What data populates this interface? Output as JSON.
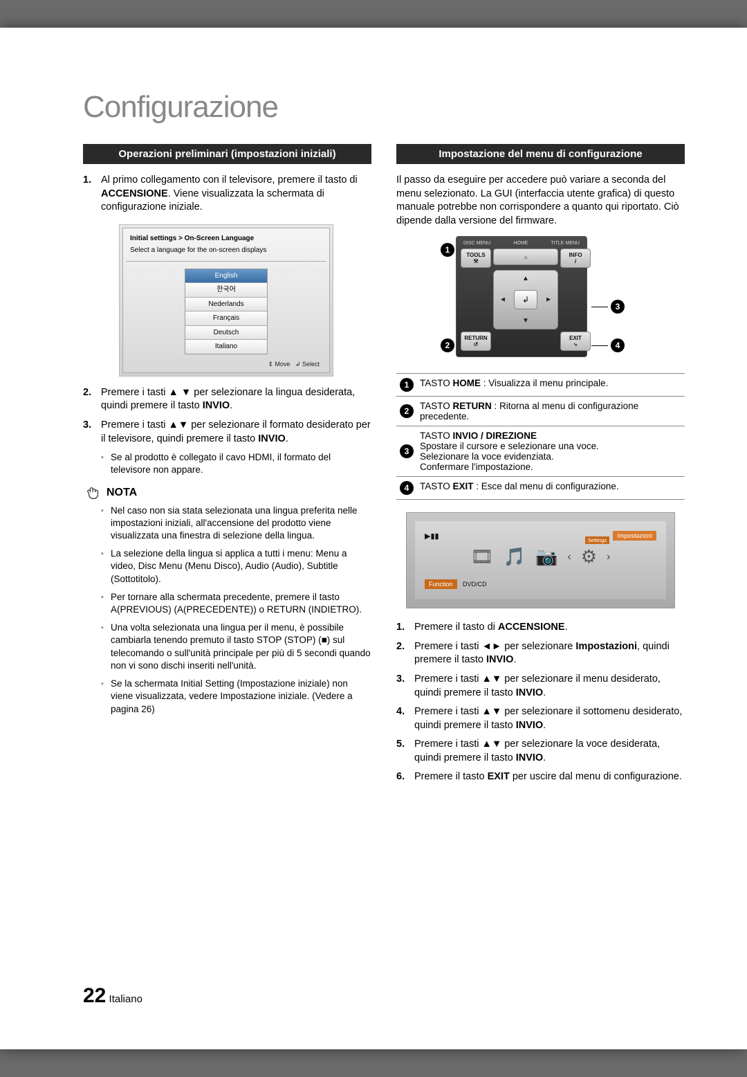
{
  "page_title": "Configurazione",
  "page_number": "22",
  "page_lang": "Italiano",
  "left": {
    "heading": "Operazioni preliminari (impostazioni iniziali)",
    "step1_a": "Al primo collegamento con il televisore, premere il tasto di ",
    "step1_b": "ACCENSIONE",
    "step1_c": ". Viene visualizzata la schermata di configurazione iniziale.",
    "langbox": {
      "breadcrumb": "Initial settings > On-Screen Language",
      "subtitle": "Select a language for the on-screen displays",
      "langs": [
        "English",
        "한국어",
        "Nederlands",
        "Français",
        "Deutsch",
        "Italiano"
      ],
      "foot_move": "Move",
      "foot_select": "Select"
    },
    "step2": "Premere i tasti ▲ ▼ per selezionare la lingua desiderata, quindi premere il tasto ",
    "step2_b": "INVIO",
    "step3": "Premere i tasti ▲▼ per selezionare il formato desiderato per il televisore, quindi premere il tasto ",
    "step3_b": "INVIO",
    "sub_hdmi": "Se al prodotto è collegato il cavo HDMI, il formato del televisore non appare.",
    "nota_label": "NOTA",
    "nota": [
      "Nel caso non sia stata selezionata una lingua preferita nelle impostazioni iniziali, all'accensione del prodotto viene visualizzata una finestra di selezione della lingua.",
      "La selezione della lingua si applica a tutti i menu: Menu a video, Disc Menu (Menu Disco), Audio (Audio), Subtitle (Sottotitolo).",
      "Per tornare alla schermata precedente, premere il tasto A(PREVIOUS) (A(PRECEDENTE)) o RETURN (INDIETRO).",
      "Una volta selezionata una lingua per il menu, è possibile cambiarla tenendo premuto il tasto STOP (STOP) (■) sul telecomando o sull'unità principale per più di 5 secondi quando non vi sono dischi inseriti nell'unità.",
      "Se la schermata Initial Setting (Impostazione iniziale) non viene visualizzata, vedere Impostazione iniziale. (Vedere a pagina 26)"
    ]
  },
  "right": {
    "heading": "Impostazione del menu di configurazione",
    "intro": "Il passo da eseguire per accedere può variare a seconda del menu selezionato. La GUI (interfaccia utente grafica) di questo manuale potrebbe non corrispondere a quanto qui riportato. Ciò dipende dalla versione del firmware.",
    "remote": {
      "top_labels": [
        "DISC MENU",
        "HOME",
        "TITLE MENU"
      ],
      "tools": "TOOLS",
      "info": "INFO",
      "return": "RETURN",
      "exit": "EXIT"
    },
    "table": [
      {
        "n": "1",
        "html": "TASTO <b>HOME</b> : Visualizza il menu principale."
      },
      {
        "n": "2",
        "html": "TASTO <b>RETURN</b> : Ritorna al menu di configurazione precedente."
      },
      {
        "n": "3",
        "html": "TASTO <b>INVIO / DIREZIONE</b><br>Spostare il cursore e selezionare una voce.<br>Selezionare la voce evidenziata.<br>Confermare l'impostazione."
      },
      {
        "n": "4",
        "html": "TASTO <b>EXIT</b> : Esce dal menu di configurazione."
      }
    ],
    "settings_shot": {
      "title": "Impostazioni",
      "sub": "Settings",
      "function": "Function",
      "function_val": "DVD/CD"
    },
    "steps": [
      "Premere il tasto di <b>ACCENSIONE</b>.",
      "Premere i tasti ◄► per selezionare <b>Impostazioni</b>, quindi premere il tasto <b>INVIO</b>.",
      "Premere i tasti ▲▼ per selezionare il menu desiderato, quindi premere il tasto <b>INVIO</b>.",
      "Premere i tasti ▲▼ per selezionare il sottomenu desiderato, quindi premere il tasto <b>INVIO</b>.",
      "Premere i tasti ▲▼ per selezionare la voce desiderata, quindi premere il tasto <b>INVIO</b>.",
      "Premere il tasto <b>EXIT</b> per uscire dal menu di configurazione."
    ]
  }
}
